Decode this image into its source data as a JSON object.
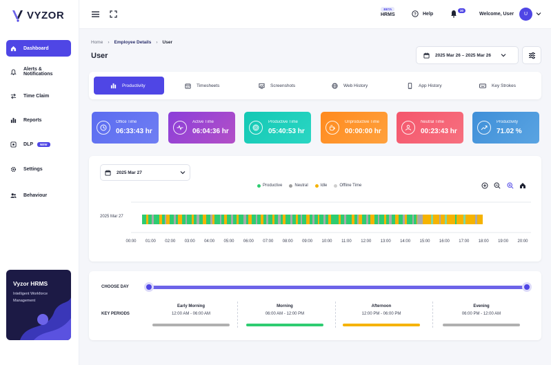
{
  "brand": {
    "name": "VYZOR"
  },
  "sidebar": {
    "items": [
      {
        "label": "Dashboard",
        "icon": "home-icon",
        "active": true
      },
      {
        "label": "Alerts & Notifications",
        "icon": "bell-icon"
      },
      {
        "label": "Time Claim",
        "icon": "swap-icon"
      },
      {
        "label": "Reports",
        "icon": "bar-chart-icon"
      },
      {
        "label": "DLP",
        "icon": "shield-icon",
        "badge": "NEW"
      },
      {
        "label": "Settings",
        "icon": "gear-icon"
      },
      {
        "label": "Behaviour",
        "icon": "users-icon"
      }
    ],
    "promo": {
      "title": "Vyzor HRMS",
      "subtitle": "Intelligent Workforce Management"
    }
  },
  "topbar": {
    "hrms_badge": "BETA",
    "hrms_label": "HRMS",
    "help_label": "Help",
    "notification_count": "30",
    "welcome": "Welcome, User",
    "avatar_initial": "U"
  },
  "breadcrumb": {
    "home": "Home",
    "parent": "Employee Details",
    "current": "User"
  },
  "page": {
    "title": "User",
    "date_range": "2025 Mar 26 – 2025 Mar 26"
  },
  "tabs": [
    {
      "label": "Productivity",
      "icon": "bar-chart-icon",
      "active": true
    },
    {
      "label": "Timesheets",
      "icon": "calendar-icon"
    },
    {
      "label": "Screenshots",
      "icon": "image-icon"
    },
    {
      "label": "Web History",
      "icon": "globe-icon"
    },
    {
      "label": "App History",
      "icon": "mobile-icon"
    },
    {
      "label": "Key Strokes",
      "icon": "keyboard-icon"
    }
  ],
  "stats": [
    {
      "label": "Office Time",
      "value": "06:33:43 hr",
      "icon": "clock-icon",
      "color": "#5b6cf0"
    },
    {
      "label": "Active Time",
      "value": "06:04:36 hr",
      "icon": "pulse-icon",
      "color": "#8b3fd9"
    },
    {
      "label": "Productive Time",
      "value": "05:40:53 hr",
      "icon": "target-icon",
      "color": "#14c8b4"
    },
    {
      "label": "Unproductive Time",
      "value": "00:00:00 hr",
      "icon": "coffee-icon",
      "color": "#ff8a1e"
    },
    {
      "label": "Neutral Time",
      "value": "00:23:43 hr",
      "icon": "user-icon",
      "color": "#f4566c"
    },
    {
      "label": "Productivity",
      "value": "71.02 %",
      "icon": "trend-icon",
      "color": "#3f8fd8"
    }
  ],
  "timeline": {
    "day_select": "2025 Mar 27",
    "row_label": "2025 Mar 27",
    "legend": [
      {
        "label": "Productive",
        "color": "#2ecc71"
      },
      {
        "label": "Neutral",
        "color": "#9e9e9e"
      },
      {
        "label": "Idle",
        "color": "#f5b301"
      },
      {
        "label": "Offline Time",
        "color": "#cfcfcf"
      }
    ],
    "axis_ticks": [
      "00:00",
      "01:00",
      "02:00",
      "03:00",
      "04:00",
      "05:00",
      "06:00",
      "07:00",
      "08:00",
      "09:00",
      "10:00",
      "11:00",
      "12:00",
      "13:00",
      "14:00",
      "15:00",
      "16:00",
      "17:00",
      "18:00",
      "19:00",
      "20:00"
    ]
  },
  "periods": {
    "choose_day_label": "CHOOSE DAY",
    "key_periods_label": "KEY PERIODS",
    "items": [
      {
        "name": "Early Morning",
        "range": "12:00 AM - 06:00 AM",
        "color": "#b0b0b0"
      },
      {
        "name": "Morning",
        "range": "06:00 AM - 12:00 PM",
        "color": "#2ecc71"
      },
      {
        "name": "Afternoon",
        "range": "12:00 PM - 06:00 PM",
        "color": "#f5b301"
      },
      {
        "name": "Evening",
        "range": "06:00 PM - 12:00 AM",
        "color": "#b0b0b0"
      }
    ]
  }
}
